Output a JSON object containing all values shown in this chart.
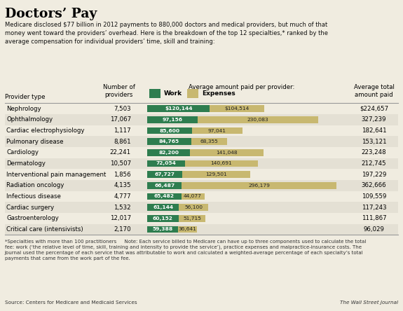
{
  "title": "Doctors’ Pay",
  "subtitle": "Medicare disclosed $77 billion in 2012 payments to 880,000 doctors and medical providers, but much of that\nmoney went toward the providers’ overhead. Here is the breakdown of the top 12 specialties,* ranked by the\naverage compensation for individual providers’ time, skill and training:",
  "col_headers": {
    "provider_type": "Provider type",
    "num_providers": "Number of\nproviders",
    "bar_header": "Average amount paid per provider:",
    "work_label": "Work",
    "expenses_label": "Expenses",
    "avg_total": "Average total\namount paid"
  },
  "rows": [
    {
      "provider": "Nephrology",
      "num_providers": "7,503",
      "work": 120144,
      "expenses": 104514,
      "total": "$224,657",
      "work_label": "$120,144",
      "exp_label": "$104,514"
    },
    {
      "provider": "Ophthalmology",
      "num_providers": "17,067",
      "work": 97156,
      "expenses": 230083,
      "total": "327,239",
      "work_label": "97,156",
      "exp_label": "230,083"
    },
    {
      "provider": "Cardiac electrophysiology",
      "num_providers": "1,117",
      "work": 85600,
      "expenses": 97041,
      "total": "182,641",
      "work_label": "85,600",
      "exp_label": "97,041"
    },
    {
      "provider": "Pulmonary disease",
      "num_providers": "8,861",
      "work": 84765,
      "expenses": 68355,
      "total": "153,121",
      "work_label": "84,765",
      "exp_label": "68,355"
    },
    {
      "provider": "Cardiology",
      "num_providers": "22,241",
      "work": 82200,
      "expenses": 141048,
      "total": "223,248",
      "work_label": "82,200",
      "exp_label": "141,048"
    },
    {
      "provider": "Dermatology",
      "num_providers": "10,507",
      "work": 72054,
      "expenses": 140691,
      "total": "212,745",
      "work_label": "72,054",
      "exp_label": "140,691"
    },
    {
      "provider": "Interventional pain management",
      "num_providers": "1,856",
      "work": 67727,
      "expenses": 129501,
      "total": "197,229",
      "work_label": "67,727",
      "exp_label": "129,501"
    },
    {
      "provider": "Radiation oncology",
      "num_providers": "4,135",
      "work": 66487,
      "expenses": 296179,
      "total": "362,666",
      "work_label": "66,487",
      "exp_label": "296,179"
    },
    {
      "provider": "Infectious disease",
      "num_providers": "4,777",
      "work": 65482,
      "expenses": 44077,
      "total": "109,559",
      "work_label": "65,482",
      "exp_label": "44,077"
    },
    {
      "provider": "Cardiac surgery",
      "num_providers": "1,532",
      "work": 61144,
      "expenses": 56100,
      "total": "117,243",
      "work_label": "61,144",
      "exp_label": "56,100"
    },
    {
      "provider": "Gastroenterology",
      "num_providers": "12,017",
      "work": 60152,
      "expenses": 51715,
      "total": "111,867",
      "work_label": "60,152",
      "exp_label": "51,715"
    },
    {
      "provider": "Critical care (intensivists)",
      "num_providers": "2,170",
      "work": 59388,
      "expenses": 36641,
      "total": "96,029",
      "work_label": "59,388",
      "exp_label": "36,641"
    }
  ],
  "work_color": "#2e7d4f",
  "expenses_color": "#c8b870",
  "bg_color": "#f0ece0",
  "row_alt_color": "#e4e0d4",
  "row_plain_color": "#f0ece0",
  "sep_color": "#999999",
  "footnote_left": "*Specialties with more than 100 practitioners     Note: Each service billed to Medicare can have up to three components used to calculate the total\nfee: work (‘the relative level of time, skill, training and intensity to provide the service’), practice expenses and malpractice-insurance costs. The\nJournal used the percentage of each service that was attributable to work and calculated a weighted-average percentage of each specialty’s total\npayments that came from the work part of the fee.",
  "source": "Source: Centers for Medicare and Medicaid Services",
  "attribution": "The Wall Street Journal",
  "max_bar_value": 362666
}
